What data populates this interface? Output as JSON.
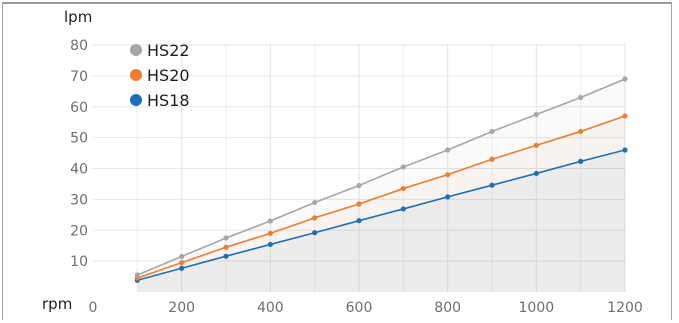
{
  "chart_data": {
    "type": "line",
    "xlabel": "rpm",
    "ylabel": "lpm",
    "x": [
      100,
      200,
      300,
      400,
      500,
      600,
      700,
      800,
      900,
      1000,
      1100,
      1200
    ],
    "xlim": [
      0,
      1200
    ],
    "ylim": [
      0,
      80
    ],
    "xticks": [
      "0",
      "200",
      "400",
      "600",
      "800",
      "1000",
      "1200"
    ],
    "yticks": [
      "10",
      "20",
      "30",
      "40",
      "50",
      "60",
      "70",
      "80"
    ],
    "grid": true,
    "legend_position": "top-left",
    "series": [
      {
        "name": "HS22",
        "color": "#a6a6a6",
        "values": [
          5.5,
          11.5,
          17.5,
          23.0,
          29.0,
          34.5,
          40.5,
          46.0,
          52.0,
          57.5,
          63.0,
          69.0
        ]
      },
      {
        "name": "HS20",
        "color": "#ed7d31",
        "values": [
          4.5,
          9.5,
          14.5,
          19.0,
          24.0,
          28.5,
          33.5,
          38.0,
          43.0,
          47.5,
          52.0,
          57.0
        ]
      },
      {
        "name": "HS18",
        "color": "#1f6fb4",
        "values": [
          3.8,
          7.7,
          11.6,
          15.4,
          19.2,
          23.1,
          26.9,
          30.8,
          34.6,
          38.4,
          42.3,
          46.0
        ]
      }
    ]
  }
}
